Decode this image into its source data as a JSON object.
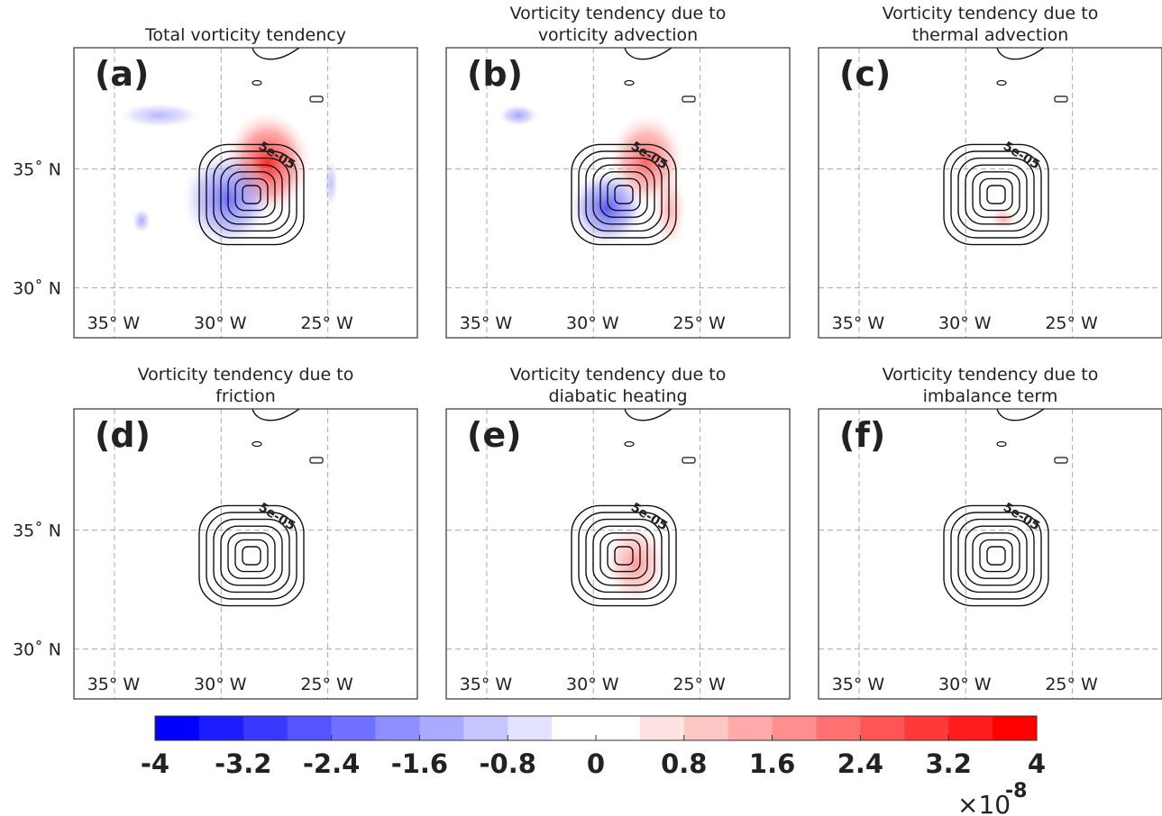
{
  "chart_data": [
    {
      "type": "contour",
      "title": [
        "Total vorticity tendency"
      ],
      "panel_label": "(a)",
      "contour_label": "5e-05",
      "xlim": [
        -36.9,
        -20.8
      ],
      "ylim": [
        27.9,
        40.1
      ],
      "xticks": [
        {
          "value": -35,
          "label": "35° W"
        },
        {
          "value": -30,
          "label": "30° W"
        },
        {
          "value": -25,
          "label": "25° W"
        }
      ],
      "yticks": [
        {
          "value": 30,
          "label": "30˚ N"
        },
        {
          "value": 35,
          "label": "35˚ N"
        }
      ]
    },
    {
      "type": "contour",
      "title": [
        "Vorticity tendency due to",
        "vorticity advection"
      ],
      "panel_label": "(b)",
      "contour_label": "5e-05",
      "xlim": [
        -36.9,
        -20.8
      ],
      "ylim": [
        27.9,
        40.1
      ],
      "xticks": [
        {
          "value": -35,
          "label": "35° W"
        },
        {
          "value": -30,
          "label": "30° W"
        },
        {
          "value": -25,
          "label": "25° W"
        }
      ],
      "yticks": [
        30,
        35
      ]
    },
    {
      "type": "contour",
      "title": [
        "Vorticity tendency due to",
        "thermal advection"
      ],
      "panel_label": "(c)",
      "contour_label": "5e-05",
      "xlim": [
        -36.9,
        -20.8
      ],
      "ylim": [
        27.9,
        40.1
      ],
      "xticks": [
        {
          "value": -35,
          "label": "35° W"
        },
        {
          "value": -30,
          "label": "30° W"
        },
        {
          "value": -25,
          "label": "25° W"
        }
      ],
      "yticks": [
        30,
        35
      ]
    },
    {
      "type": "contour",
      "title": [
        "Vorticity tendency due to",
        "friction"
      ],
      "panel_label": "(d)",
      "contour_label": "5e-05",
      "xlim": [
        -36.9,
        -20.8
      ],
      "ylim": [
        27.9,
        40.1
      ],
      "xticks": [
        {
          "value": -35,
          "label": "35° W"
        },
        {
          "value": -30,
          "label": "30° W"
        },
        {
          "value": -25,
          "label": "25° W"
        }
      ],
      "yticks": [
        {
          "value": 30,
          "label": "30˚ N"
        },
        {
          "value": 35,
          "label": "35˚ N"
        }
      ]
    },
    {
      "type": "contour",
      "title": [
        "Vorticity tendency due to",
        "diabatic heating"
      ],
      "panel_label": "(e)",
      "contour_label": "5e-05",
      "xlim": [
        -36.9,
        -20.8
      ],
      "ylim": [
        27.9,
        40.1
      ],
      "xticks": [
        {
          "value": -35,
          "label": "35° W"
        },
        {
          "value": -30,
          "label": "30° W"
        },
        {
          "value": -25,
          "label": "25° W"
        }
      ],
      "yticks": [
        30,
        35
      ]
    },
    {
      "type": "contour",
      "title": [
        "Vorticity tendency due to",
        "imbalance term"
      ],
      "panel_label": "(f)",
      "contour_label": "5e-05",
      "xlim": [
        -36.9,
        -20.8
      ],
      "ylim": [
        27.9,
        40.1
      ],
      "xticks": [
        {
          "value": -35,
          "label": "35° W"
        },
        {
          "value": -30,
          "label": "30° W"
        },
        {
          "value": -25,
          "label": "25° W"
        }
      ],
      "yticks": [
        30,
        35
      ]
    }
  ],
  "colorbar": {
    "clim": [
      -4,
      4
    ],
    "ticks": [
      -4,
      -3.2,
      -2.4,
      -1.6,
      -0.8,
      0,
      0.8,
      1.6,
      2.4,
      3.2,
      4
    ],
    "colors": [
      "#0000ff",
      "#1c1cff",
      "#3939ff",
      "#5555ff",
      "#7171ff",
      "#8e8eff",
      "#aaaaff",
      "#c6c6ff",
      "#e3e3ff",
      "#ffffff",
      "#ffffff",
      "#ffe3e3",
      "#ffc6c6",
      "#ffaaaa",
      "#ff8e8e",
      "#ff7171",
      "#ff5555",
      "#ff3939",
      "#ff1c1c",
      "#ff0000"
    ],
    "multiplier": "×10",
    "exponent": "-8"
  }
}
